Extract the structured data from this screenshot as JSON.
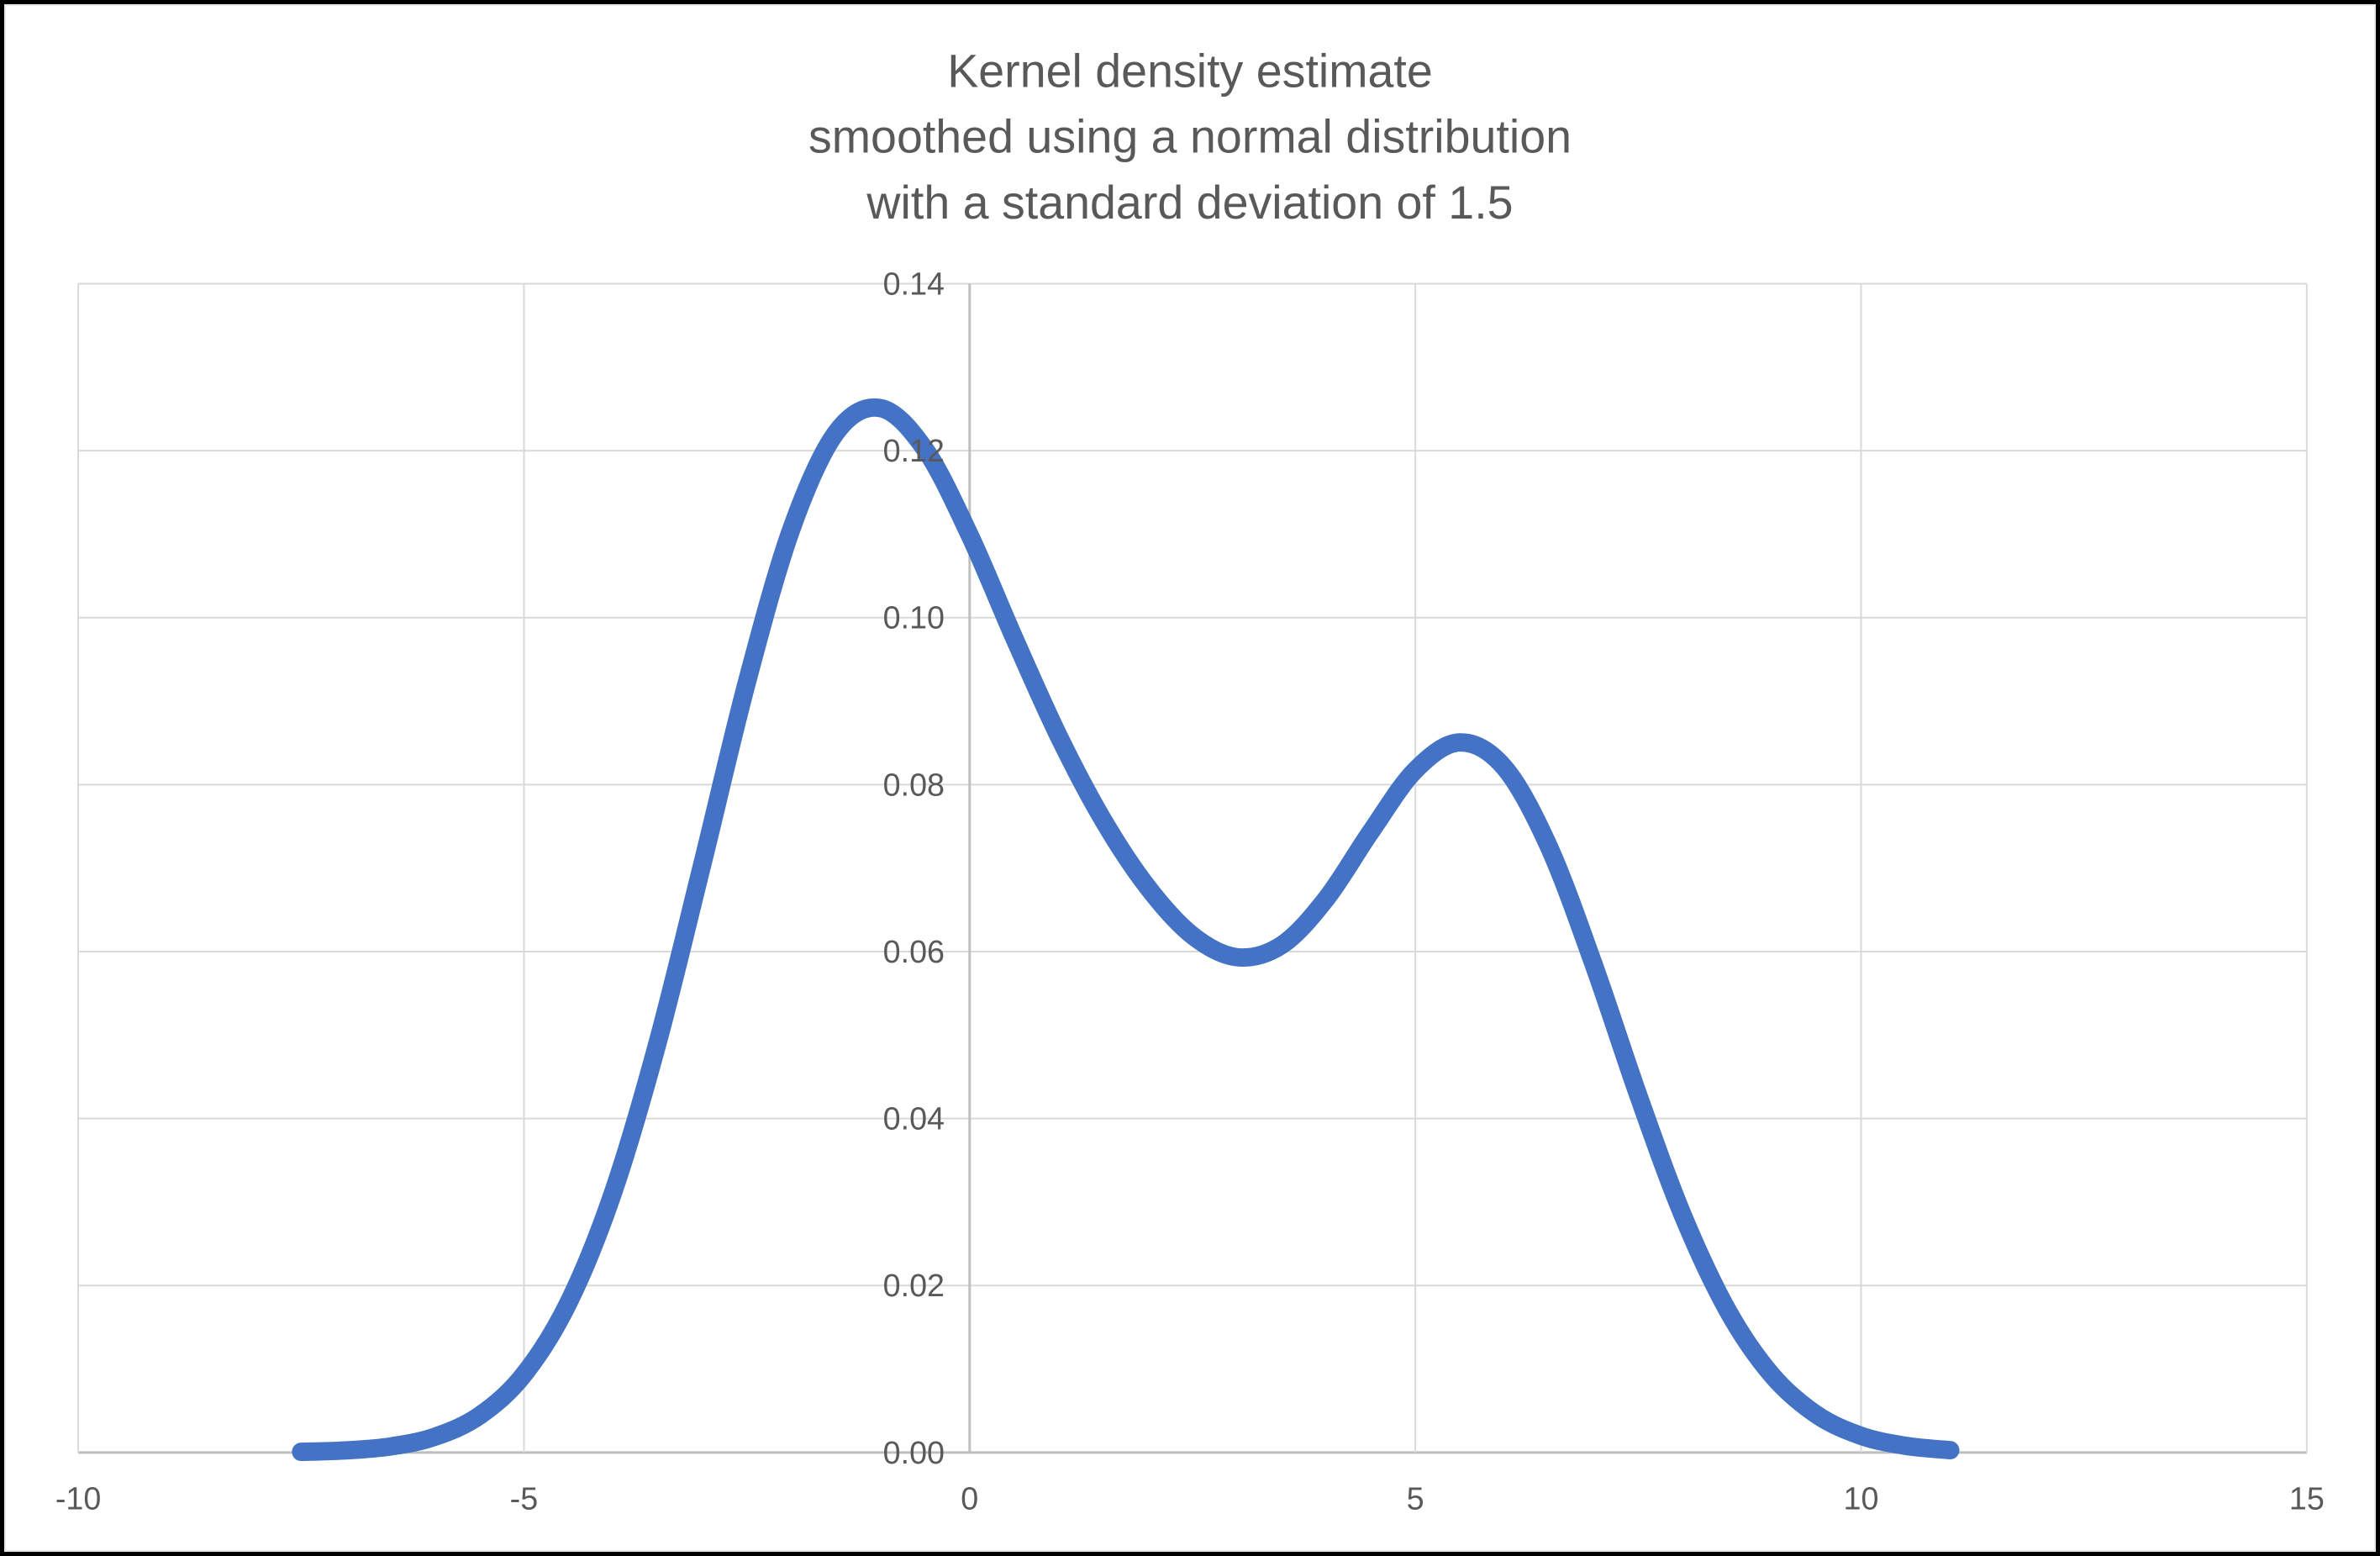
{
  "chart": {
    "title_lines": [
      "Kernel density estimate",
      "smoothed using a normal distribution",
      "with a standard deviation of 1.5"
    ],
    "y_ticks": [
      "0.00",
      "0.02",
      "0.04",
      "0.06",
      "0.08",
      "0.10",
      "0.12",
      "0.14"
    ],
    "x_ticks": [
      "-10",
      "-5",
      "0",
      "5",
      "10",
      "15"
    ]
  },
  "chart_data": {
    "type": "line",
    "title": "Kernel density estimate smoothed using a normal distribution with a standard deviation of 1.5",
    "xlabel": "",
    "ylabel": "",
    "xlim": [
      -10,
      15
    ],
    "ylim": [
      0,
      0.14
    ],
    "x_tick_values": [
      -10,
      -5,
      0,
      5,
      10,
      15
    ],
    "y_tick_values": [
      0,
      0.02,
      0.04,
      0.06,
      0.08,
      0.1,
      0.12,
      0.14
    ],
    "grid": true,
    "legend": false,
    "kernel_sd": 1.5,
    "series": [
      {
        "name": "Kernel density estimate",
        "x": [
          -7.5,
          -7,
          -6.5,
          -6,
          -5.5,
          -5,
          -4.5,
          -4,
          -3.5,
          -3,
          -2.5,
          -2,
          -1.5,
          -1,
          -0.5,
          0,
          0.5,
          1,
          1.5,
          2,
          2.5,
          3,
          3.5,
          4,
          4.5,
          5,
          5.5,
          6,
          6.5,
          7,
          7.5,
          8,
          8.5,
          9,
          9.5,
          10,
          10.5,
          11
        ],
        "y": [
          8e-05,
          0.00025,
          0.00072,
          0.00188,
          0.00441,
          0.00935,
          0.01794,
          0.03115,
          0.04909,
          0.07043,
          0.09221,
          0.11059,
          0.12214,
          0.1251,
          0.12015,
          0.10989,
          0.09757,
          0.08578,
          0.07572,
          0.06767,
          0.06193,
          0.05933,
          0.06078,
          0.06633,
          0.07436,
          0.08173,
          0.08505,
          0.08203,
          0.07252,
          0.05846,
          0.04282,
          0.02843,
          0.01708,
          0.00927,
          0.00454,
          0.002,
          0.0008,
          0.00028
        ]
      }
    ]
  },
  "colors": {
    "line": "#4472C4",
    "gridline": "#D9D9D9",
    "axis": "#BFBFBF",
    "label": "#595959",
    "background": "#FFFFFF",
    "border": "#000000"
  }
}
